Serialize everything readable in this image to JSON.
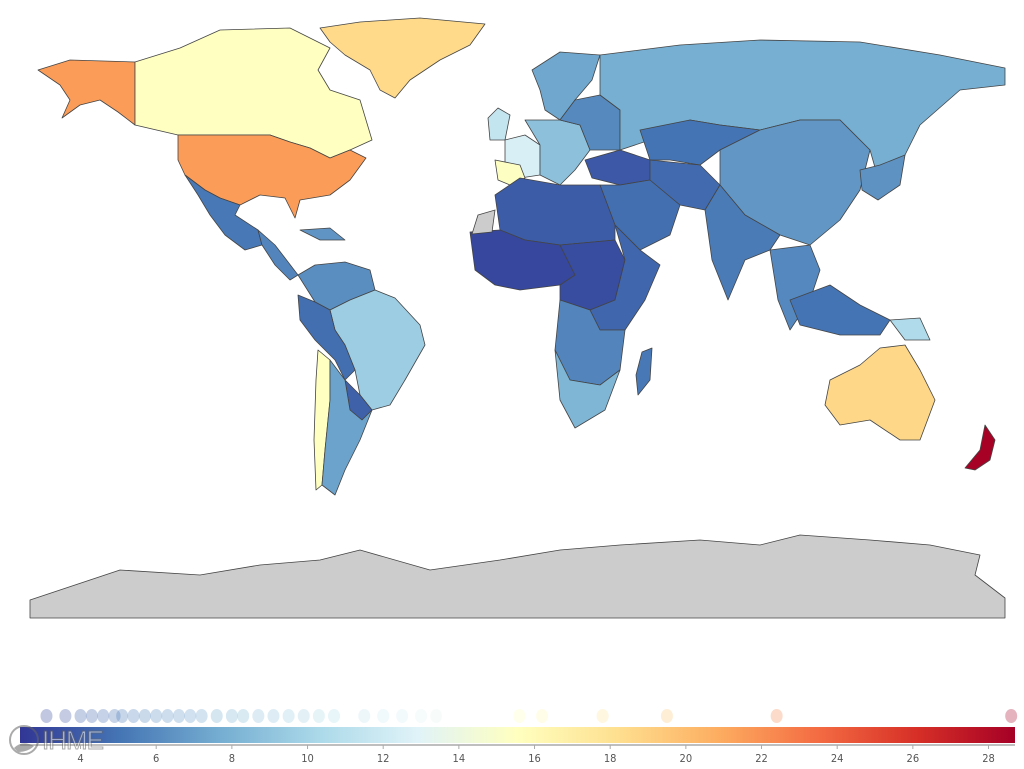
{
  "colorscale": [
    "#313695",
    "#4575b4",
    "#74add1",
    "#abd9e9",
    "#e0f3f8",
    "#ffffbf",
    "#fee090",
    "#fdae61",
    "#f46d43",
    "#d73027",
    "#a50026"
  ],
  "no_data_color": "#cccccc",
  "legend": {
    "min": 2.4,
    "max": 28.7,
    "ticks": [
      "4",
      "6",
      "8",
      "10",
      "12",
      "14",
      "16",
      "18",
      "20",
      "22",
      "24",
      "26",
      "28"
    ],
    "dots": [
      3.1,
      3.6,
      4.0,
      4.3,
      4.6,
      4.9,
      5.1,
      5.4,
      5.7,
      6.0,
      6.3,
      6.6,
      6.9,
      7.2,
      7.6,
      8.0,
      8.3,
      8.7,
      9.1,
      9.5,
      9.9,
      10.3,
      10.7,
      11.5,
      12.0,
      12.5,
      13.0,
      13.4,
      15.6,
      16.2,
      17.8,
      19.5,
      22.4,
      28.6
    ]
  },
  "logo_text": "IHME",
  "regions": {
    "alaska": 21.5,
    "canada": 15.5,
    "usa": 21.5,
    "greenland": 18.5,
    "mexico": 5.2,
    "central_america": 5.8,
    "caribbean": 6.5,
    "colombia_venezuela": 6.2,
    "brazil": 9.6,
    "peru_bolivia": 4.8,
    "argentina": 7.2,
    "chile": 15.5,
    "paraguay": 4.2,
    "uk_ireland": 11.5,
    "france_benelux": 12.5,
    "spain_portugal": 15.4,
    "central_europe": 8.8,
    "scandinavia": 7.4,
    "eastern_europe": 6.0,
    "russia": 7.8,
    "central_asia": 5.0,
    "turkey_caucasus": 3.8,
    "middle_east": 4.8,
    "iran_afghanistan": 4.6,
    "china_mongolia": 6.6,
    "india_south_asia": 5.3,
    "southeast_asia": 5.9,
    "indonesia": 5.0,
    "japan_korea": 6.4,
    "png": 10.5,
    "north_africa": 4.0,
    "west_africa": 3.1,
    "central_africa": 3.3,
    "east_africa": 4.4,
    "southern_africa": 5.8,
    "south_africa": 8.2,
    "madagascar": 5.2,
    "australia": 18.6,
    "new_zealand": 28.6
  }
}
